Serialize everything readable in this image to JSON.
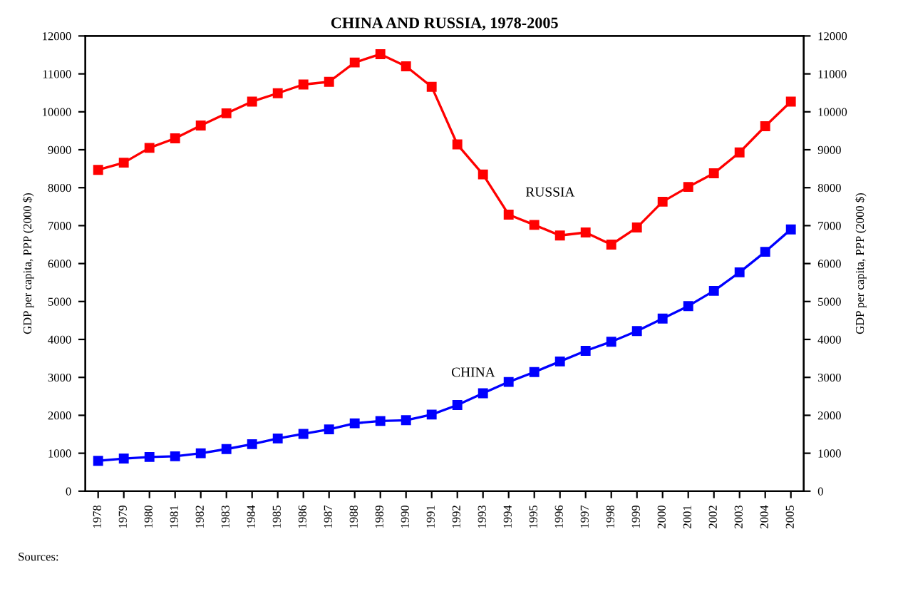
{
  "chart_data": {
    "type": "line",
    "title": "CHINA AND RUSSIA, 1978-2005",
    "ylabel": "GDP per capita, PPP (2000 $)",
    "y2label": "GDP per capita, PPP (2000 $)",
    "x": [
      1978,
      1979,
      1980,
      1981,
      1982,
      1983,
      1984,
      1985,
      1986,
      1987,
      1988,
      1989,
      1990,
      1991,
      1992,
      1993,
      1994,
      1995,
      1996,
      1997,
      1998,
      1999,
      2000,
      2001,
      2002,
      2003,
      2004,
      2005
    ],
    "series": [
      {
        "name": "RUSSIA",
        "color": "#ff0000",
        "values": [
          8470,
          8660,
          9050,
          9300,
          9640,
          9960,
          10270,
          10490,
          10720,
          10790,
          11300,
          11520,
          11200,
          10660,
          9140,
          8350,
          7290,
          7020,
          6740,
          6820,
          6500,
          6950,
          7630,
          8020,
          8380,
          8930,
          9620,
          10270
        ]
      },
      {
        "name": "CHINA",
        "color": "#0000ff",
        "values": [
          800,
          860,
          900,
          920,
          1000,
          1110,
          1240,
          1390,
          1510,
          1630,
          1790,
          1850,
          1870,
          2020,
          2270,
          2580,
          2880,
          3140,
          3420,
          3700,
          3940,
          4220,
          4550,
          4880,
          5280,
          5770,
          6310,
          6900
        ]
      }
    ],
    "annotations": [
      "Sources:"
    ],
    "xlim": [
      1977.5,
      2005.5
    ],
    "xticks": [
      1978,
      1979,
      1980,
      1981,
      1982,
      1983,
      1984,
      1985,
      1986,
      1987,
      1988,
      1989,
      1990,
      1991,
      1992,
      1993,
      1994,
      1995,
      1996,
      1997,
      1998,
      1999,
      2000,
      2001,
      2002,
      2003,
      2004,
      2005
    ],
    "ylim": [
      0,
      12000
    ],
    "yticks": [
      0,
      1000,
      2000,
      3000,
      4000,
      5000,
      6000,
      7000,
      8000,
      9000,
      10000,
      11000,
      12000
    ],
    "y2lim": [
      0,
      12000
    ],
    "y2ticks": [
      0,
      1000,
      2000,
      3000,
      4000,
      5000,
      6000,
      7000,
      8000,
      9000,
      10000,
      11000,
      12000
    ],
    "marker": "square",
    "line_style": "solid",
    "grid": false,
    "legend": false
  }
}
